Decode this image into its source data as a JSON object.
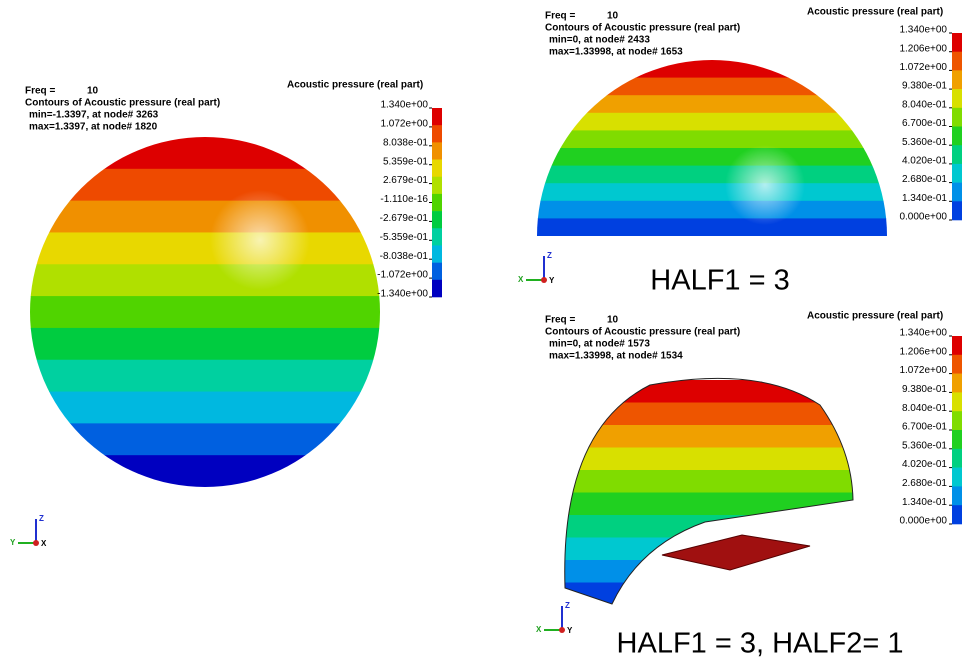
{
  "panels": [
    {
      "freq_label": "Freq =",
      "freq": "10",
      "contour": "Contours of Acoustic pressure (real part)",
      "min": "min=-1.3397, at node# 3263",
      "max": "max=1.3397, at node# 1820",
      "legend_title": "Acoustic pressure (real part)",
      "legend_labels": [
        "1.340e+00",
        "1.072e+00",
        "8.038e-01",
        "5.359e-01",
        "2.679e-01",
        "-1.110e-16",
        "-2.679e-01",
        "-5.359e-01",
        "-8.038e-01",
        "-1.072e+00",
        "-1.340e+00"
      ],
      "triad": [
        "Z",
        "Y",
        "X"
      ]
    },
    {
      "freq_label": "Freq =",
      "freq": "10",
      "contour": "Contours of Acoustic pressure (real part)",
      "min": "min=0, at node# 2433",
      "max": "max=1.33998, at node# 1653",
      "legend_title": "Acoustic pressure (real part)",
      "legend_labels": [
        "1.340e+00",
        "1.206e+00",
        "1.072e+00",
        "9.380e-01",
        "8.040e-01",
        "6.700e-01",
        "5.360e-01",
        "4.020e-01",
        "2.680e-01",
        "1.340e-01",
        "0.000e+00"
      ],
      "triad": [
        "Z",
        "X",
        "Y"
      ],
      "caption": "HALF1 = 3"
    },
    {
      "freq_label": "Freq =",
      "freq": "10",
      "contour": "Contours of Acoustic pressure (real part)",
      "min": "min=0, at node# 1573",
      "max": "max=1.33998, at node# 1534",
      "legend_title": "Acoustic pressure (real part)",
      "legend_labels": [
        "1.340e+00",
        "1.206e+00",
        "1.072e+00",
        "9.380e-01",
        "8.040e-01",
        "6.700e-01",
        "5.360e-01",
        "4.020e-01",
        "2.680e-01",
        "1.340e-01",
        "0.000e+00"
      ],
      "triad": [
        "Z",
        "X",
        "Y"
      ],
      "caption": "HALF1 = 3, HALF2= 1"
    }
  ]
}
